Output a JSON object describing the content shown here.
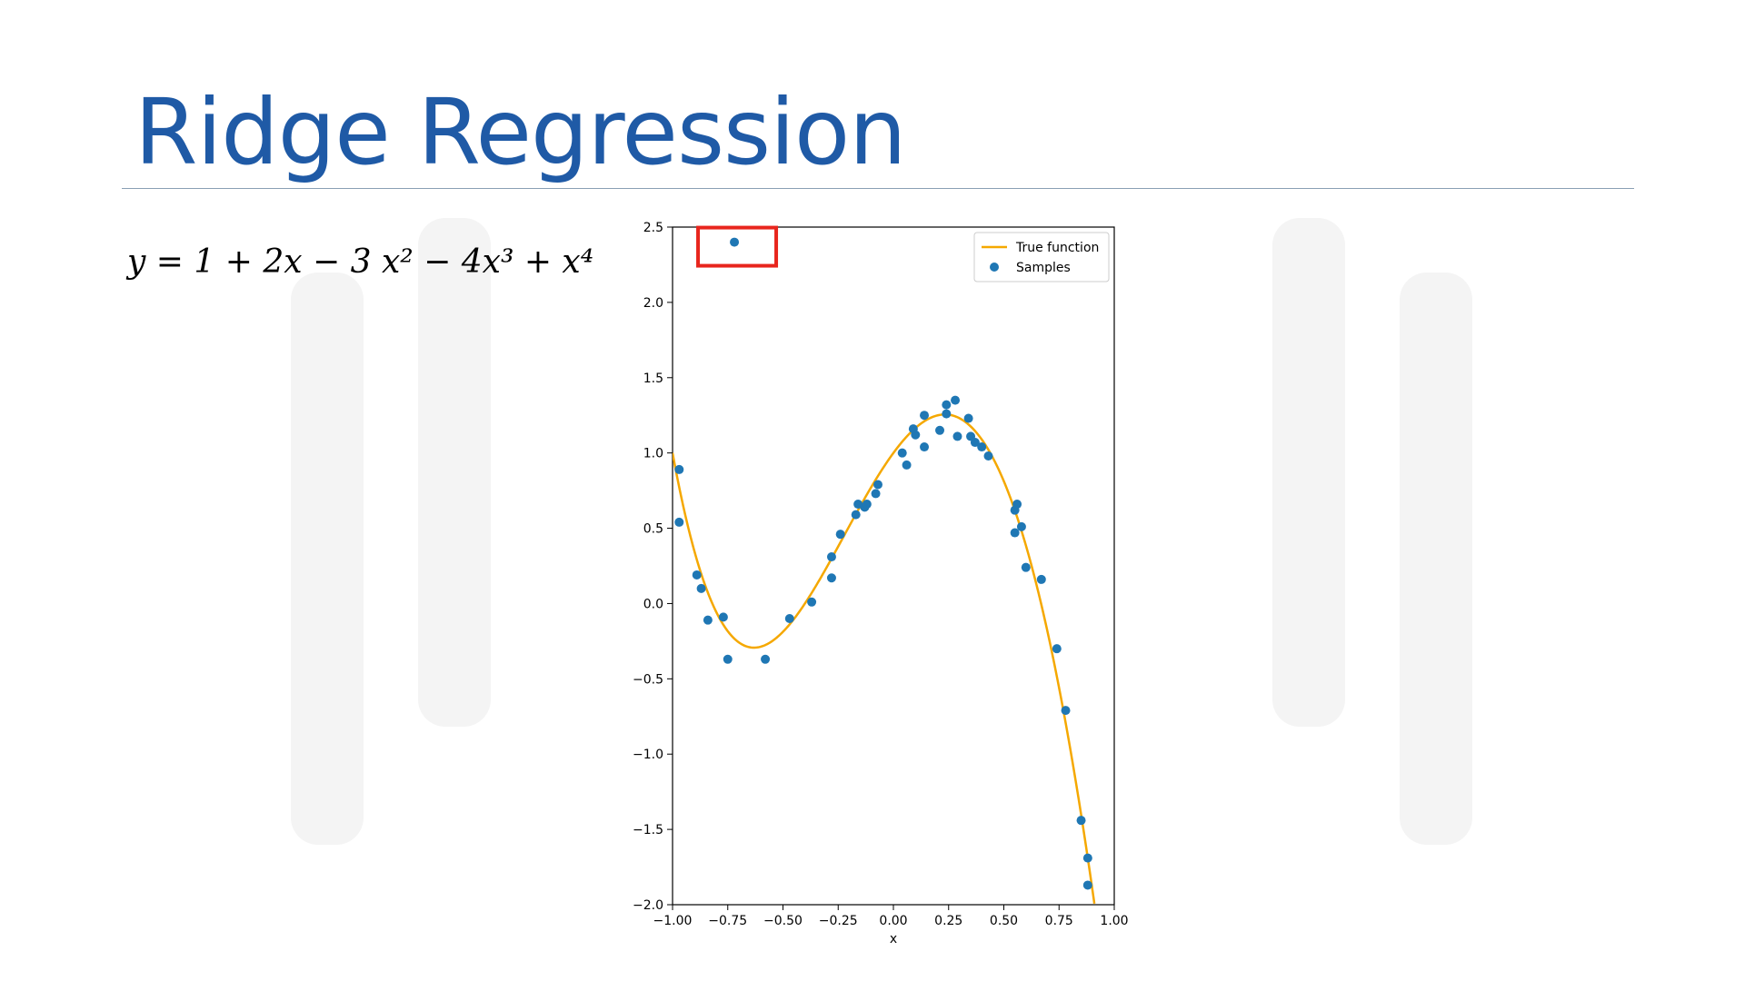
{
  "slide": {
    "title": "Ridge Regression",
    "equation": "y = 1 + 2x − 3 x² − 4x³ + x⁴"
  },
  "colors": {
    "title": "#1f5aa6",
    "samples": "#1f77b4",
    "true_function": "#f5a800",
    "highlight_box": "#e8251d"
  },
  "chart_data": {
    "type": "scatter",
    "xlabel": "x",
    "ylabel": "",
    "xlim": [
      -1.0,
      1.0
    ],
    "ylim": [
      -2.0,
      2.5
    ],
    "xticks": [
      -1.0,
      -0.75,
      -0.5,
      -0.25,
      0.0,
      0.25,
      0.5,
      0.75,
      1.0
    ],
    "xtick_labels": [
      "−1.00",
      "−0.75",
      "−0.50",
      "−0.25",
      "0.00",
      "0.25",
      "0.50",
      "0.75",
      "1.00"
    ],
    "yticks": [
      -2.0,
      -1.5,
      -1.0,
      -0.5,
      0.0,
      0.5,
      1.0,
      1.5,
      2.0,
      2.5
    ],
    "ytick_labels": [
      "−2.0",
      "−1.5",
      "−1.0",
      "−0.5",
      "0.0",
      "0.5",
      "1.0",
      "1.5",
      "2.0",
      "2.5"
    ],
    "legend": {
      "placement": "top-right",
      "entries": [
        "True function",
        "Samples"
      ]
    },
    "series": [
      {
        "name": "True function",
        "kind": "line",
        "formula": "1 + 2x - 3x^2 - 4x^3 + x^4",
        "x_range": [
          -1.0,
          0.91
        ]
      },
      {
        "name": "Samples",
        "kind": "scatter",
        "points": [
          [
            -0.97,
            0.89
          ],
          [
            -0.97,
            0.54
          ],
          [
            -0.89,
            0.19
          ],
          [
            -0.87,
            0.1
          ],
          [
            -0.84,
            -0.11
          ],
          [
            -0.77,
            -0.09
          ],
          [
            -0.75,
            -0.37
          ],
          [
            -0.72,
            2.4
          ],
          [
            -0.58,
            -0.37
          ],
          [
            -0.47,
            -0.1
          ],
          [
            -0.37,
            0.01
          ],
          [
            -0.28,
            0.17
          ],
          [
            -0.28,
            0.31
          ],
          [
            -0.24,
            0.46
          ],
          [
            -0.17,
            0.59
          ],
          [
            -0.16,
            0.66
          ],
          [
            -0.13,
            0.64
          ],
          [
            -0.12,
            0.66
          ],
          [
            -0.08,
            0.73
          ],
          [
            -0.07,
            0.79
          ],
          [
            0.04,
            1.0
          ],
          [
            0.06,
            0.92
          ],
          [
            0.09,
            1.16
          ],
          [
            0.1,
            1.12
          ],
          [
            0.14,
            1.04
          ],
          [
            0.14,
            1.25
          ],
          [
            0.21,
            1.15
          ],
          [
            0.24,
            1.26
          ],
          [
            0.24,
            1.32
          ],
          [
            0.28,
            1.35
          ],
          [
            0.29,
            1.11
          ],
          [
            0.34,
            1.23
          ],
          [
            0.35,
            1.11
          ],
          [
            0.37,
            1.07
          ],
          [
            0.4,
            1.04
          ],
          [
            0.43,
            0.98
          ],
          [
            0.55,
            0.62
          ],
          [
            0.55,
            0.47
          ],
          [
            0.56,
            0.66
          ],
          [
            0.58,
            0.51
          ],
          [
            0.6,
            0.24
          ],
          [
            0.67,
            0.16
          ],
          [
            0.74,
            -0.3
          ],
          [
            0.78,
            -0.71
          ],
          [
            0.85,
            -1.44
          ],
          [
            0.88,
            -1.69
          ],
          [
            0.88,
            -1.87
          ]
        ]
      }
    ],
    "annotations": [
      {
        "type": "box",
        "around_point": [
          -0.72,
          2.4
        ],
        "color": "#e8251d"
      }
    ]
  }
}
